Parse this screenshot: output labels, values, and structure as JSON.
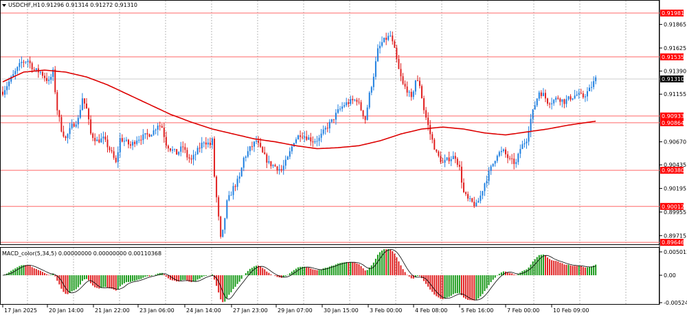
{
  "header": {
    "symbol_label": "USDCHF,H1",
    "ohlc_label": "0.91296 0.91314 0.91272 0.91310",
    "indicator_label": "MACD_color(5,34,5) 0.00000000 0.00000000 0.00110368"
  },
  "colors": {
    "bull": "#1e7fe0",
    "bear": "#e02020",
    "ma": "#dd0000",
    "level_line": "#ff6666",
    "level_badge": "#ff0000",
    "current_badge": "#000000",
    "macd_pos": "#1a9a1a",
    "macd_neg": "#e02020",
    "grid": "#888888"
  },
  "chart_data": [
    {
      "type": "candlestick",
      "title": "USDCHF,H1",
      "ylim": [
        0.8964,
        0.921
      ],
      "y_tick_labels": [
        "0.91865",
        "0.91625",
        "0.91390",
        "0.91155",
        "0.90670",
        "0.90435",
        "0.90195",
        "0.89955",
        "0.89715"
      ],
      "y_ticks": [
        0.91865,
        0.91625,
        0.9139,
        0.91155,
        0.9067,
        0.90435,
        0.90195,
        0.89955,
        0.89715
      ],
      "x_tick_labels": [
        "17 Jan 2025",
        "20 Jan 14:00",
        "21 Jan 22:00",
        "23 Jan 06:00",
        "24 Jan 14:00",
        "27 Jan 23:00",
        "29 Jan 07:00",
        "30 Jan 15:00",
        "3 Feb 00:00",
        "4 Feb 08:00",
        "5 Feb 16:00",
        "7 Feb 00:00",
        "10 Feb 09:00"
      ],
      "levels": [
        {
          "label": "0.91981",
          "price": 0.91981
        },
        {
          "label": "0.91535",
          "price": 0.91535
        },
        {
          "label": "0.90933",
          "price": 0.90933
        },
        {
          "label": "0.90864",
          "price": 0.90864
        },
        {
          "label": "0.90380",
          "price": 0.9038
        },
        {
          "label": "0.90012",
          "price": 0.90012
        },
        {
          "label": "0.89646",
          "price": 0.89646
        }
      ],
      "current_price": {
        "label": "0.91310",
        "price": 0.9131
      },
      "price_anchors": [
        [
          0,
          0.9118
        ],
        [
          3,
          0.9128
        ],
        [
          6,
          0.9138
        ],
        [
          9,
          0.9148
        ],
        [
          12,
          0.915
        ],
        [
          15,
          0.914
        ],
        [
          18,
          0.9138
        ],
        [
          22,
          0.9128
        ],
        [
          24,
          0.9138
        ],
        [
          26,
          0.91
        ],
        [
          28,
          0.908
        ],
        [
          30,
          0.907
        ],
        [
          33,
          0.9083
        ],
        [
          36,
          0.909
        ],
        [
          38,
          0.9112
        ],
        [
          40,
          0.91
        ],
        [
          42,
          0.9075
        ],
        [
          45,
          0.9068
        ],
        [
          48,
          0.907
        ],
        [
          50,
          0.9063
        ],
        [
          52,
          0.9055
        ],
        [
          54,
          0.9045
        ],
        [
          56,
          0.907
        ],
        [
          58,
          0.9068
        ],
        [
          61,
          0.9063
        ],
        [
          64,
          0.907
        ],
        [
          67,
          0.9072
        ],
        [
          70,
          0.9075
        ],
        [
          72,
          0.9078
        ],
        [
          74,
          0.9085
        ],
        [
          76,
          0.9082
        ],
        [
          78,
          0.9065
        ],
        [
          80,
          0.906
        ],
        [
          83,
          0.9055
        ],
        [
          86,
          0.9062
        ],
        [
          88,
          0.9052
        ],
        [
          90,
          0.9048
        ],
        [
          93,
          0.9058
        ],
        [
          96,
          0.9068
        ],
        [
          99,
          0.9064
        ],
        [
          100,
          0.9068
        ],
        [
          101,
          0.9032
        ],
        [
          102,
          0.901
        ],
        [
          104,
          0.8968
        ],
        [
          105,
          0.8975
        ],
        [
          106,
          0.899
        ],
        [
          107,
          0.9005
        ],
        [
          110,
          0.902
        ],
        [
          113,
          0.903
        ],
        [
          115,
          0.905
        ],
        [
          118,
          0.906
        ],
        [
          121,
          0.9068
        ],
        [
          124,
          0.9055
        ],
        [
          127,
          0.9045
        ],
        [
          130,
          0.9042
        ],
        [
          133,
          0.9038
        ],
        [
          136,
          0.905
        ],
        [
          139,
          0.9068
        ],
        [
          142,
          0.9075
        ],
        [
          145,
          0.9072
        ],
        [
          148,
          0.9068
        ],
        [
          151,
          0.907
        ],
        [
          154,
          0.908
        ],
        [
          157,
          0.9088
        ],
        [
          160,
          0.9098
        ],
        [
          163,
          0.9105
        ],
        [
          166,
          0.9108
        ],
        [
          169,
          0.911
        ],
        [
          171,
          0.91
        ],
        [
          173,
          0.909
        ],
        [
          175,
          0.9115
        ],
        [
          177,
          0.9135
        ],
        [
          179,
          0.916
        ],
        [
          181,
          0.9168
        ],
        [
          183,
          0.9172
        ],
        [
          185,
          0.9175
        ],
        [
          187,
          0.916
        ],
        [
          189,
          0.914
        ],
        [
          191,
          0.9125
        ],
        [
          193,
          0.912
        ],
        [
          195,
          0.911
        ],
        [
          197,
          0.913
        ],
        [
          199,
          0.9125
        ],
        [
          201,
          0.91
        ],
        [
          204,
          0.9075
        ],
        [
          207,
          0.9055
        ],
        [
          210,
          0.9045
        ],
        [
          213,
          0.905
        ],
        [
          216,
          0.9052
        ],
        [
          218,
          0.904
        ],
        [
          220,
          0.9015
        ],
        [
          222,
          0.9008
        ],
        [
          224,
          0.9005
        ],
        [
          226,
          0.9002
        ],
        [
          228,
          0.9012
        ],
        [
          230,
          0.9025
        ],
        [
          233,
          0.904
        ],
        [
          236,
          0.9055
        ],
        [
          239,
          0.9057
        ],
        [
          242,
          0.9048
        ],
        [
          245,
          0.9045
        ],
        [
          247,
          0.906
        ],
        [
          250,
          0.907
        ],
        [
          252,
          0.909
        ],
        [
          254,
          0.9105
        ],
        [
          256,
          0.9118
        ],
        [
          258,
          0.9115
        ],
        [
          260,
          0.9108
        ],
        [
          262,
          0.9108
        ],
        [
          265,
          0.9112
        ],
        [
          268,
          0.9108
        ],
        [
          271,
          0.9112
        ],
        [
          274,
          0.9115
        ],
        [
          277,
          0.9113
        ],
        [
          280,
          0.912
        ],
        [
          283,
          0.9131
        ]
      ],
      "ma_anchors": [
        [
          0,
          0.9128
        ],
        [
          10,
          0.9138
        ],
        [
          20,
          0.914
        ],
        [
          30,
          0.9138
        ],
        [
          40,
          0.9133
        ],
        [
          50,
          0.9125
        ],
        [
          60,
          0.9115
        ],
        [
          70,
          0.9105
        ],
        [
          80,
          0.9095
        ],
        [
          90,
          0.9087
        ],
        [
          100,
          0.908
        ],
        [
          110,
          0.9075
        ],
        [
          120,
          0.907
        ],
        [
          130,
          0.9067
        ],
        [
          140,
          0.9063
        ],
        [
          150,
          0.906
        ],
        [
          160,
          0.9061
        ],
        [
          170,
          0.9063
        ],
        [
          180,
          0.9068
        ],
        [
          190,
          0.9075
        ],
        [
          200,
          0.908
        ],
        [
          210,
          0.9082
        ],
        [
          220,
          0.908
        ],
        [
          230,
          0.9076
        ],
        [
          240,
          0.9074
        ],
        [
          250,
          0.9077
        ],
        [
          260,
          0.908
        ],
        [
          270,
          0.9084
        ],
        [
          283,
          0.9088
        ]
      ]
    },
    {
      "type": "bar",
      "title": "MACD_color(5,34,5)",
      "ylim": [
        -0.0052489,
        0.0050123
      ],
      "y_tick_labels": [
        "0.0050123",
        "0.00",
        "-0.0052489"
      ],
      "y_ticks": [
        0.0050123,
        0.0,
        -0.0052489
      ]
    }
  ]
}
